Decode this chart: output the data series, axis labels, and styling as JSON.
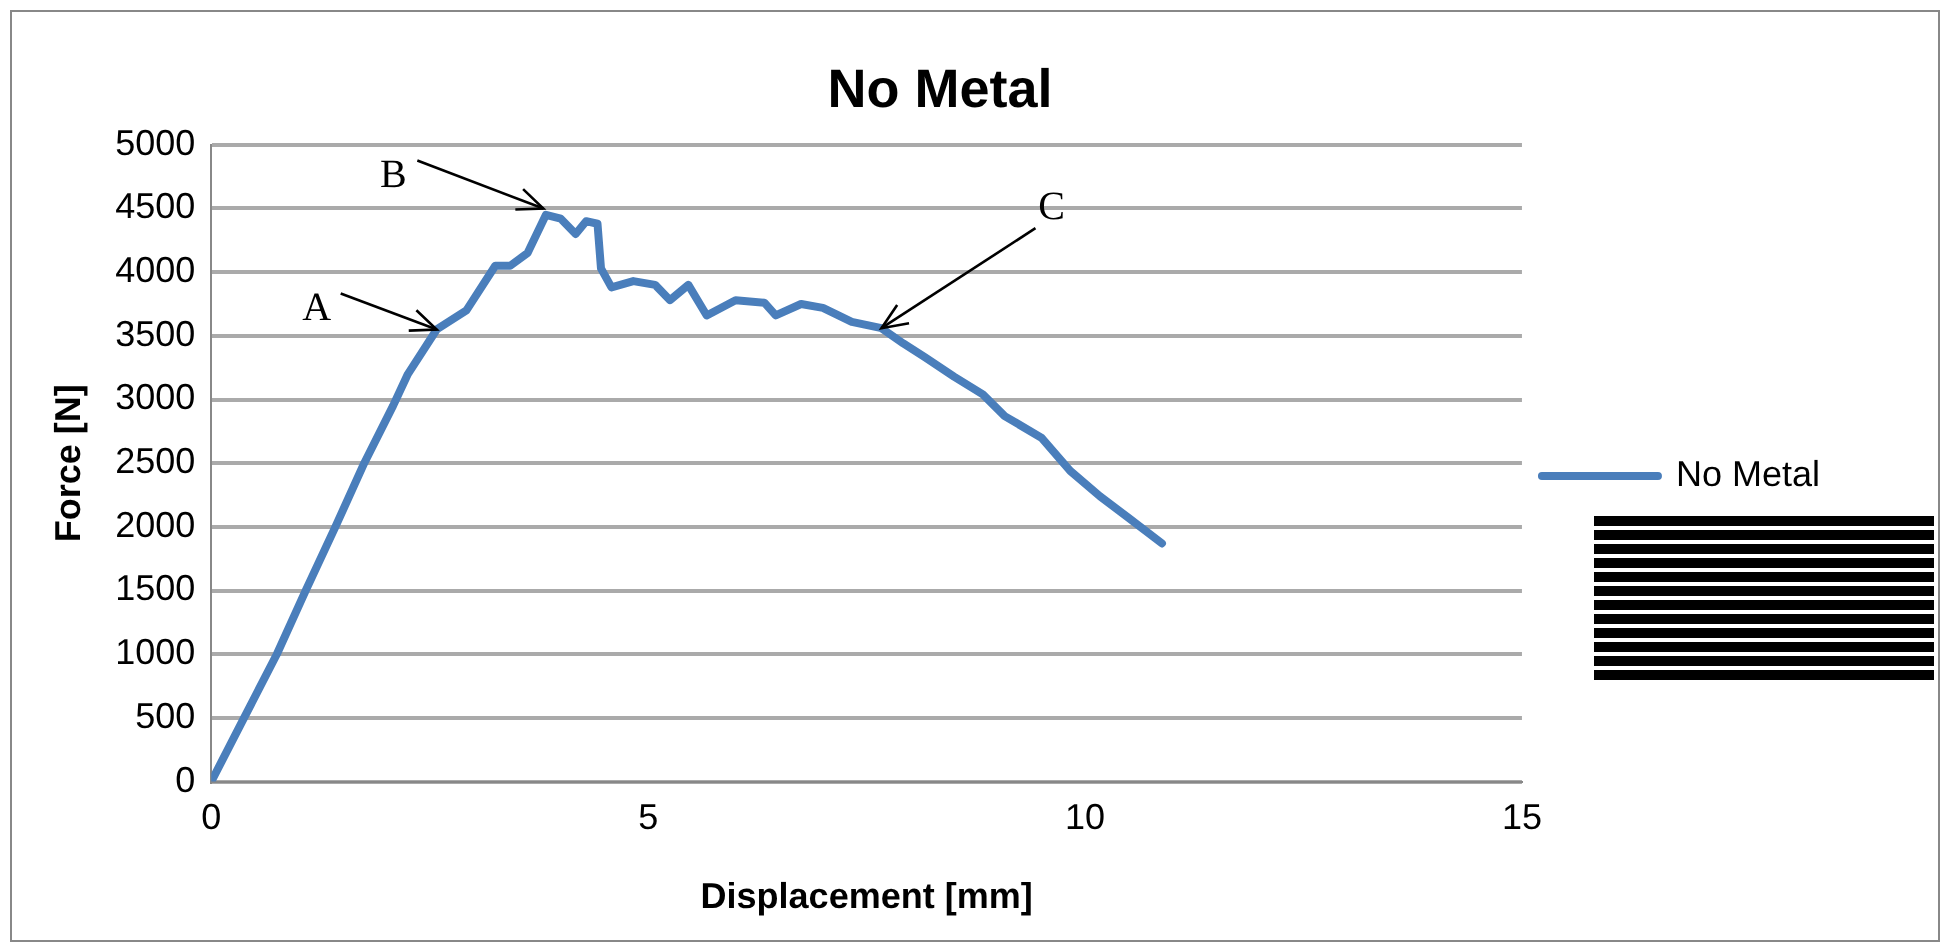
{
  "chart_data": {
    "type": "line",
    "title": "No Metal",
    "xlabel": "Displacement [mm]",
    "ylabel": "Force [N]",
    "x": [
      0,
      0.375,
      0.75,
      1.08,
      1.42,
      1.75,
      2.08,
      2.25,
      2.58,
      2.92,
      3.25,
      3.42,
      3.62,
      3.83,
      4.0,
      4.17,
      4.29,
      4.42,
      4.46,
      4.58,
      4.83,
      5.08,
      5.25,
      5.46,
      5.67,
      6.0,
      6.33,
      6.46,
      6.75,
      7.0,
      7.33,
      7.67,
      7.92,
      8.17,
      8.5,
      8.83,
      9.08,
      9.5,
      9.83,
      10.17,
      10.5,
      10.88
    ],
    "series": [
      {
        "name": "No Metal",
        "color": "#4a7ebb",
        "values": [
          0,
          500,
          1000,
          1500,
          2000,
          2500,
          2950,
          3200,
          3550,
          3700,
          4050,
          4050,
          4150,
          4450,
          4420,
          4300,
          4400,
          4380,
          4030,
          3880,
          3930,
          3900,
          3780,
          3900,
          3660,
          3780,
          3760,
          3660,
          3750,
          3720,
          3610,
          3560,
          3440,
          3330,
          3180,
          3040,
          2870,
          2700,
          2440,
          2240,
          2070,
          1870
        ]
      }
    ],
    "xlim": [
      0,
      15
    ],
    "xticks": [
      0,
      5,
      10,
      15
    ],
    "ylim": [
      0,
      5000
    ],
    "yticks": [
      0,
      500,
      1000,
      1500,
      2000,
      2500,
      3000,
      3500,
      4000,
      4500,
      5000
    ],
    "grid": "y",
    "legend": "right",
    "marker": "none",
    "line_style": "solid",
    "annotations": [
      {
        "text": "A",
        "x": 2.58,
        "y": 3550
      },
      {
        "text": "B",
        "x": 3.8,
        "y": 4500
      },
      {
        "text": "C",
        "x": 7.67,
        "y": 3560
      }
    ]
  }
}
